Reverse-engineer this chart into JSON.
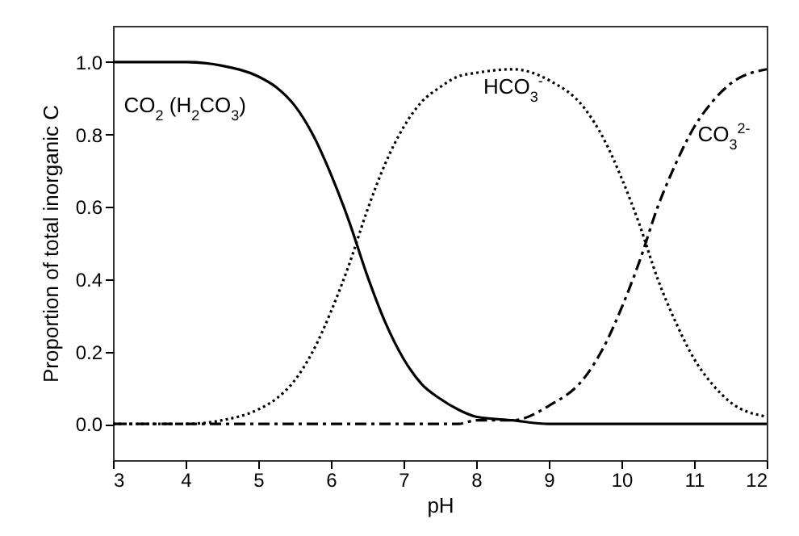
{
  "chart_data": {
    "type": "line",
    "xlabel": "pH",
    "ylabel": "Proportion of total inorganic C",
    "x": [
      3,
      3.5,
      4,
      4.5,
      5,
      5.25,
      5.5,
      5.75,
      6,
      6.25,
      6.5,
      6.75,
      7,
      7.25,
      7.5,
      7.75,
      8,
      8.5,
      9,
      9.5,
      9.75,
      10,
      10.25,
      10.5,
      10.75,
      11,
      11.25,
      11.5,
      12
    ],
    "series": [
      {
        "name": "CO$_{2}$ (H$_{2}$CO$_{3}$)",
        "color": "#000000",
        "line_style": "solid",
        "values": [
          1.0,
          1.0,
          1.0,
          0.99,
          0.96,
          0.93,
          0.88,
          0.8,
          0.69,
          0.56,
          0.41,
          0.28,
          0.18,
          0.11,
          0.07,
          0.04,
          0.02,
          0.01,
          0,
          0,
          0,
          0,
          0,
          0,
          0,
          0,
          0,
          0,
          0
        ]
      },
      {
        "name": "HCO$_{3}$$^{-}$",
        "color": "#000000",
        "line_style": "dotted",
        "values": [
          0,
          0,
          0,
          0.01,
          0.04,
          0.07,
          0.12,
          0.2,
          0.31,
          0.44,
          0.59,
          0.72,
          0.82,
          0.89,
          0.93,
          0.96,
          0.97,
          0.98,
          0.95,
          0.87,
          0.79,
          0.68,
          0.55,
          0.4,
          0.28,
          0.18,
          0.11,
          0.06,
          0.02
        ]
      },
      {
        "name": "CO$_{3}$$^{2-}$",
        "color": "#000000",
        "line_style": "dashed",
        "values": [
          0,
          0,
          0,
          0,
          0,
          0,
          0,
          0,
          0,
          0,
          0,
          0,
          0,
          0,
          0,
          0,
          0.01,
          0.01,
          0.05,
          0.13,
          0.21,
          0.32,
          0.45,
          0.6,
          0.72,
          0.82,
          0.89,
          0.94,
          0.98
        ]
      }
    ],
    "xlim": [
      3,
      12
    ],
    "xticks": [
      3,
      4,
      5,
      6,
      7,
      8,
      9,
      10,
      11,
      12
    ],
    "ylim": [
      -0.1,
      1.1
    ],
    "yticks": [
      {
        "value": 0,
        "label": "0.0"
      },
      0.2,
      0.4,
      0.6,
      0.8,
      {
        "value": 1,
        "label": "1.0"
      }
    ],
    "grid": false,
    "marker": "none"
  }
}
